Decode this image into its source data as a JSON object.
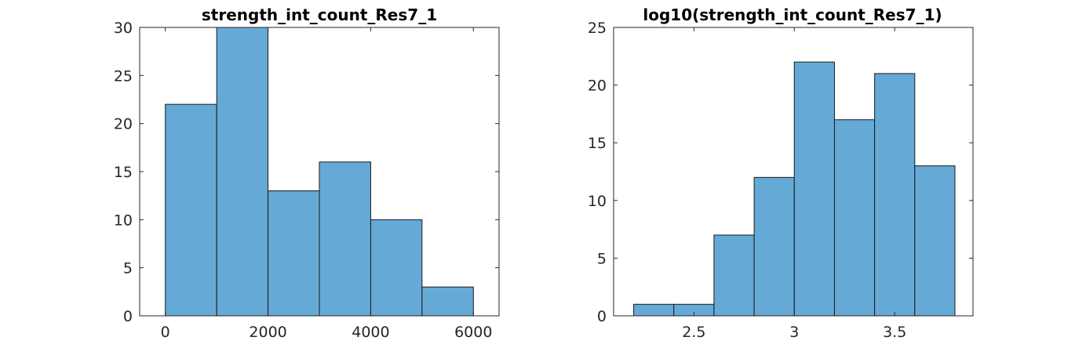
{
  "chart_data": [
    {
      "type": "bar",
      "title": "strength_int_count_Res7_1",
      "bin_edges": [
        0,
        1000,
        2000,
        3000,
        4000,
        5000,
        6000
      ],
      "values": [
        22,
        30,
        13,
        16,
        10,
        3
      ],
      "xlim": [
        -500,
        6500
      ],
      "ylim": [
        0,
        30
      ],
      "xticks": [
        0,
        2000,
        4000,
        6000
      ],
      "xtick_labels": [
        "0",
        "2000",
        "4000",
        "6000"
      ],
      "yticks": [
        0,
        5,
        10,
        15,
        20,
        25,
        30
      ],
      "ytick_labels": [
        "0",
        "5",
        "10",
        "15",
        "20",
        "25",
        "30"
      ],
      "bar_color": "#65A9D7",
      "grid": false
    },
    {
      "type": "bar",
      "title": "log10(strength_int_count_Res7_1)",
      "bin_edges": [
        2.2,
        2.4,
        2.6,
        2.8,
        3.0,
        3.2,
        3.4,
        3.6,
        3.8
      ],
      "values": [
        1,
        1,
        7,
        12,
        22,
        17,
        21,
        13
      ],
      "xlim": [
        2.1,
        3.89
      ],
      "ylim": [
        0,
        25
      ],
      "xticks": [
        2.5,
        3,
        3.5
      ],
      "xtick_labels": [
        "2.5",
        "3",
        "3.5"
      ],
      "yticks": [
        0,
        5,
        10,
        15,
        20,
        25
      ],
      "ytick_labels": [
        "0",
        "5",
        "10",
        "15",
        "20",
        "25"
      ],
      "bar_color": "#65A9D7",
      "grid": false
    }
  ]
}
